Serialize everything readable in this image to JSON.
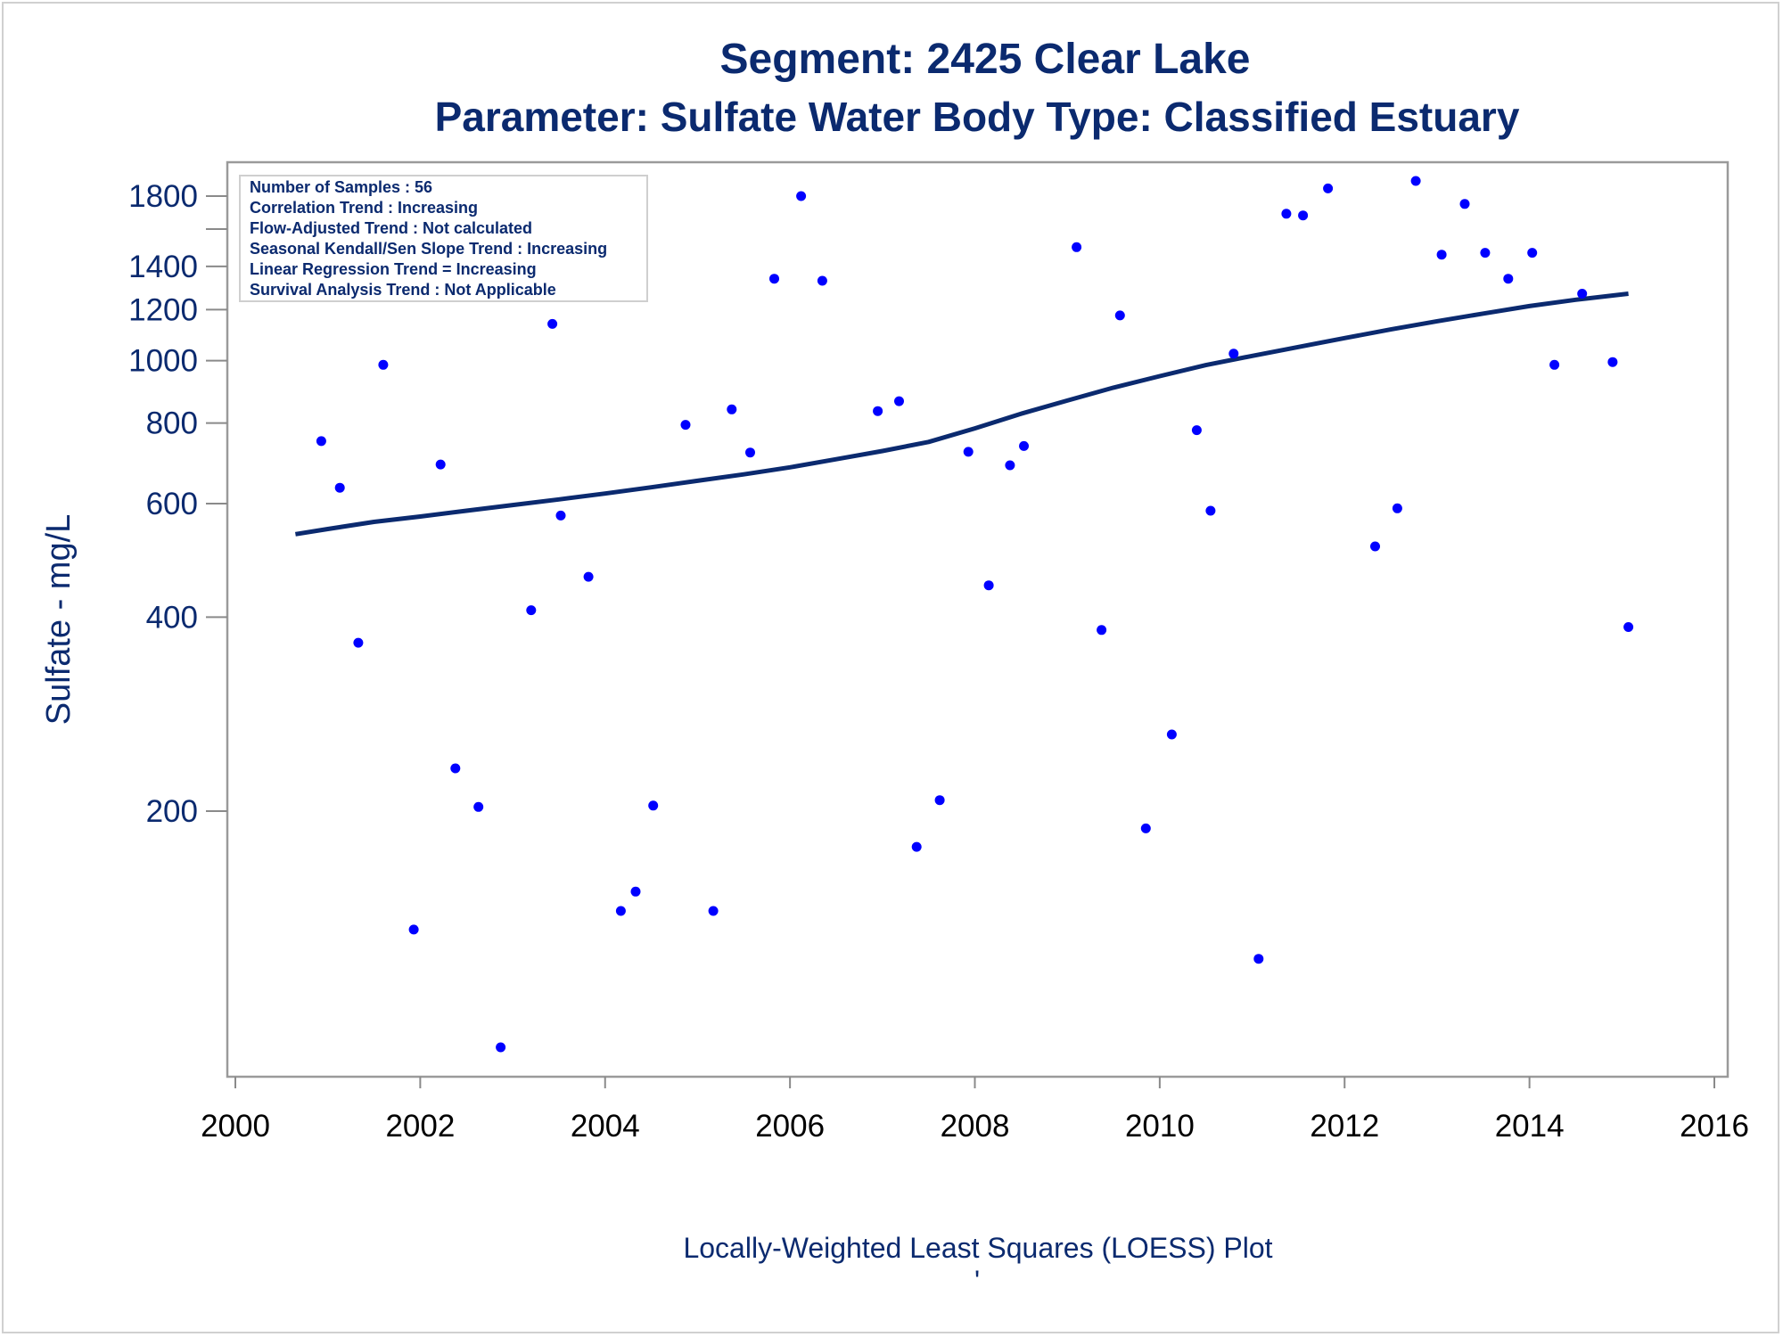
{
  "chart_data": {
    "type": "scatter",
    "title": "Segment: 2425  Clear Lake",
    "subtitle": "Parameter: Sulfate   Water Body Type: Classified Estuary",
    "ylabel": "Sulfate - mg/L",
    "xlabel": "",
    "footnote": "Locally-Weighted Least Squares (LOESS) Plot",
    "footnote_mark": "'",
    "y_scale": "log",
    "ylim": [
      86,
      2000
    ],
    "xlim": [
      2000,
      2016
    ],
    "x_ticks": [
      "2000",
      "2002",
      "2004",
      "2006",
      "2008",
      "2010",
      "2012",
      "2014",
      "2016"
    ],
    "y_ticks": [
      {
        "value": 1800,
        "label": "1800"
      },
      {
        "value": 1600,
        "label": ""
      },
      {
        "value": 1400,
        "label": "1400"
      },
      {
        "value": 1200,
        "label": "1200"
      },
      {
        "value": 1000,
        "label": "1000"
      },
      {
        "value": 800,
        "label": "800"
      },
      {
        "value": 600,
        "label": "600"
      },
      {
        "value": 400,
        "label": "400"
      },
      {
        "value": 200,
        "label": "200"
      }
    ],
    "grid": false,
    "stats_box": {
      "placement": "top-left",
      "lines": [
        "Number of Samples : 56",
        "Correlation Trend : Increasing",
        "Flow-Adjusted Trend : Not calculated",
        "Seasonal Kendall/Sen Slope Trend : Increasing",
        "Linear Regression Trend = Increasing",
        "Survival Analysis Trend : Not Applicable"
      ]
    },
    "series": [
      {
        "kind": "points",
        "color": "#0000ff",
        "points": [
          [
            2000.65,
            1420
          ],
          [
            2000.93,
            750
          ],
          [
            2001.13,
            635
          ],
          [
            2001.33,
            365
          ],
          [
            2001.6,
            985
          ],
          [
            2001.93,
            131
          ],
          [
            2002.22,
            690
          ],
          [
            2002.38,
            233
          ],
          [
            2002.63,
            203
          ],
          [
            2002.87,
            86
          ],
          [
            2003.2,
            410
          ],
          [
            2003.43,
            1140
          ],
          [
            2003.52,
            575
          ],
          [
            2003.82,
            462
          ],
          [
            2004.17,
            140
          ],
          [
            2004.33,
            150
          ],
          [
            2004.52,
            204
          ],
          [
            2004.87,
            795
          ],
          [
            2005.17,
            140
          ],
          [
            2005.37,
            840
          ],
          [
            2005.57,
            720
          ],
          [
            2005.83,
            1340
          ],
          [
            2006.12,
            1800
          ],
          [
            2006.35,
            1330
          ],
          [
            2006.95,
            835
          ],
          [
            2007.18,
            865
          ],
          [
            2007.37,
            176
          ],
          [
            2007.62,
            208
          ],
          [
            2007.93,
            722
          ],
          [
            2008.15,
            448
          ],
          [
            2008.38,
            688
          ],
          [
            2008.53,
            737
          ],
          [
            2009.1,
            1500
          ],
          [
            2009.37,
            382
          ],
          [
            2009.57,
            1175
          ],
          [
            2009.85,
            188
          ],
          [
            2010.13,
            263
          ],
          [
            2010.4,
            780
          ],
          [
            2010.55,
            585
          ],
          [
            2010.8,
            1025
          ],
          [
            2011.07,
            118
          ],
          [
            2011.37,
            1690
          ],
          [
            2011.55,
            1680
          ],
          [
            2011.82,
            1850
          ],
          [
            2012.33,
            515
          ],
          [
            2012.57,
            590
          ],
          [
            2012.77,
            1900
          ],
          [
            2013.05,
            1460
          ],
          [
            2013.3,
            1750
          ],
          [
            2013.52,
            1470
          ],
          [
            2013.77,
            1340
          ],
          [
            2014.03,
            1470
          ],
          [
            2014.27,
            985
          ],
          [
            2014.57,
            1270
          ],
          [
            2014.9,
            995
          ],
          [
            2015.07,
            386
          ]
        ]
      },
      {
        "kind": "loess_line",
        "color": "#0b2a6f",
        "points": [
          [
            2000.65,
            538
          ],
          [
            2001.0,
            548
          ],
          [
            2001.5,
            562
          ],
          [
            2002.0,
            573
          ],
          [
            2002.5,
            585
          ],
          [
            2003.0,
            597
          ],
          [
            2003.5,
            609
          ],
          [
            2004.0,
            622
          ],
          [
            2004.5,
            636
          ],
          [
            2005.0,
            651
          ],
          [
            2005.5,
            666
          ],
          [
            2006.0,
            683
          ],
          [
            2006.5,
            703
          ],
          [
            2007.0,
            724
          ],
          [
            2007.5,
            748
          ],
          [
            2008.0,
            785
          ],
          [
            2008.5,
            827
          ],
          [
            2009.0,
            867
          ],
          [
            2009.5,
            908
          ],
          [
            2010.0,
            946
          ],
          [
            2010.5,
            984
          ],
          [
            2011.0,
            1017
          ],
          [
            2011.5,
            1050
          ],
          [
            2012.0,
            1084
          ],
          [
            2012.5,
            1118
          ],
          [
            2013.0,
            1151
          ],
          [
            2013.5,
            1183
          ],
          [
            2014.0,
            1215
          ],
          [
            2014.5,
            1243
          ],
          [
            2015.07,
            1270
          ]
        ]
      }
    ]
  }
}
